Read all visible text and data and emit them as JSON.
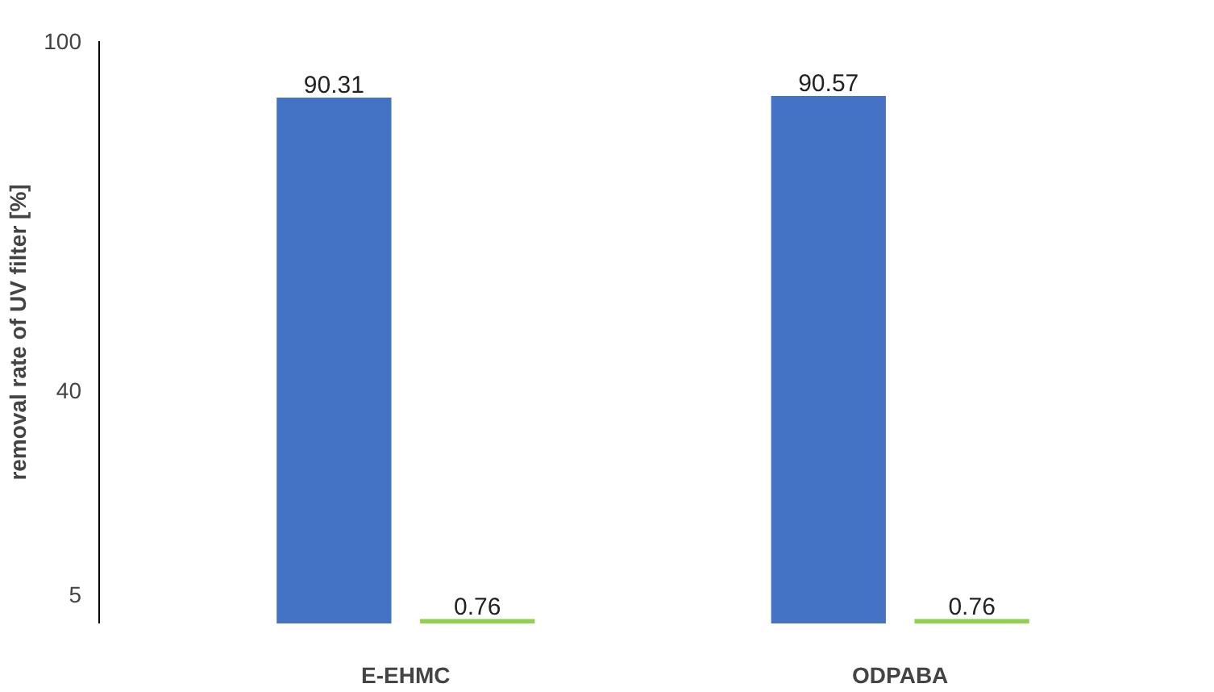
{
  "chart_data": {
    "type": "bar",
    "ylabel": "removal rate of UV filter [%]",
    "categories": [
      "E-EHMC",
      "ODPABA"
    ],
    "series": [
      {
        "color": "#4472c4",
        "values": [
          90.31,
          90.57
        ]
      },
      {
        "color": "#92d050",
        "values": [
          0.76,
          0.76
        ]
      }
    ],
    "ylim": [
      0,
      100
    ],
    "yticks": [
      5,
      40,
      100
    ],
    "grid": false,
    "data_labels": true
  }
}
